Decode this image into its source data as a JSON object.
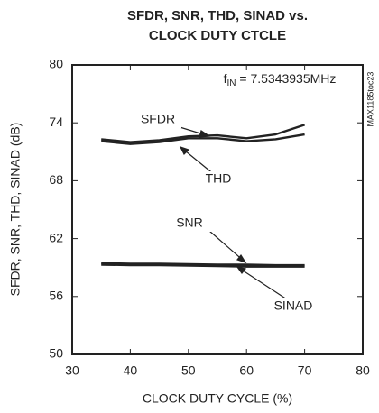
{
  "chart_data": {
    "type": "line",
    "title": [
      "SFDR, SNR, THD, SINAD vs.",
      "CLOCK DUTY CTCLE"
    ],
    "x_label": "CLOCK DUTY CYCLE (%)",
    "y_label": "SFDR, SNR, THD, SINAD (dB)",
    "annotation": {
      "f": "f",
      "sub": "IN",
      "rest": " = 7.5343935MHz"
    },
    "code": "MAX1185toc23",
    "x": [
      35,
      40,
      45,
      50,
      55,
      60,
      65,
      70
    ],
    "series": [
      {
        "name": "SFDR",
        "color": "#222222",
        "values": [
          72.3,
          72.0,
          72.2,
          72.6,
          72.7,
          72.4,
          72.8,
          73.8
        ]
      },
      {
        "name": "THD",
        "color": "#222222",
        "values": [
          72.1,
          71.8,
          72.0,
          72.4,
          72.4,
          72.1,
          72.3,
          72.8
        ]
      },
      {
        "name": "SNR",
        "color": "#222222",
        "values": [
          59.45,
          59.4,
          59.4,
          59.35,
          59.3,
          59.3,
          59.25,
          59.25
        ]
      },
      {
        "name": "SINAD",
        "color": "#222222",
        "values": [
          59.3,
          59.25,
          59.25,
          59.2,
          59.15,
          59.1,
          59.1,
          59.1
        ]
      }
    ],
    "xlim": [
      30,
      80
    ],
    "xticks": [
      30,
      40,
      50,
      60,
      70,
      80
    ],
    "ylim": [
      50,
      80
    ],
    "yticks": [
      50,
      56,
      62,
      68,
      74,
      80
    ],
    "grid": false
  }
}
